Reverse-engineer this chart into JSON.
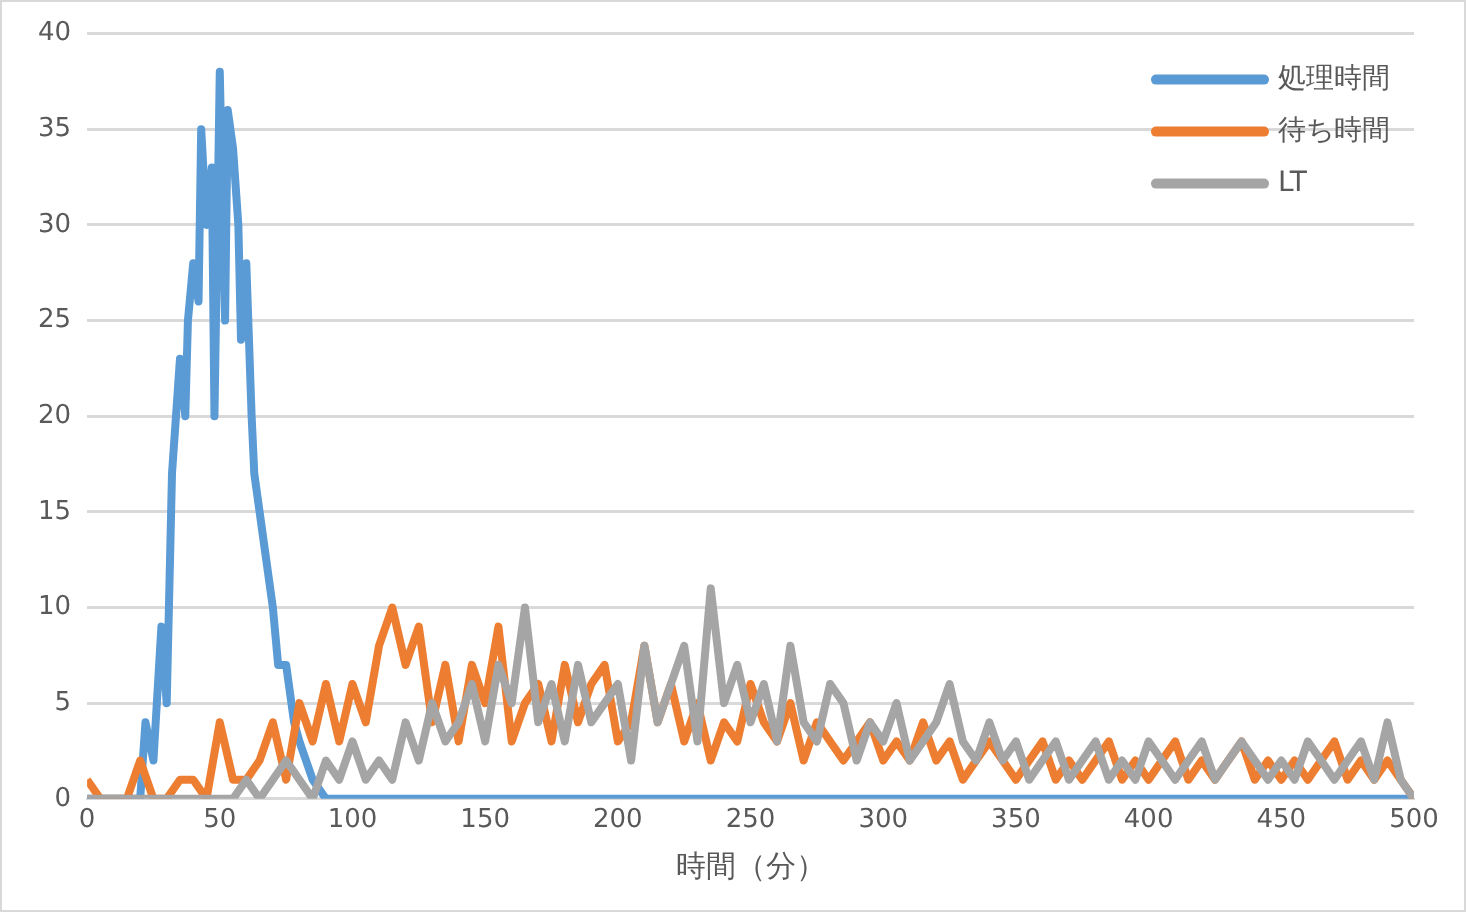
{
  "chart_data": {
    "type": "line",
    "xlabel": "時間（分）",
    "xlim": [
      0,
      500
    ],
    "xticks": [
      0,
      50,
      100,
      150,
      200,
      250,
      300,
      350,
      400,
      450,
      500
    ],
    "ylim": [
      0,
      40
    ],
    "yticks": [
      0,
      5,
      10,
      15,
      20,
      25,
      30,
      35,
      40
    ],
    "grid": "y",
    "legend": "top right",
    "marker": "none",
    "line_style": "solid",
    "series": [
      {
        "name": "処理時間",
        "color": "#5b9bd5",
        "x": [
          0,
          20,
          22,
          25,
          28,
          30,
          32,
          35,
          37,
          38,
          40,
          42,
          43,
          45,
          47,
          48,
          50,
          52,
          53,
          55,
          57,
          58,
          60,
          62,
          63,
          65,
          67,
          70,
          72,
          75,
          78,
          80,
          85,
          90,
          500
        ],
        "values": [
          0,
          0,
          4,
          2,
          9,
          5,
          17,
          23,
          20,
          25,
          28,
          26,
          35,
          30,
          33,
          20,
          38,
          25,
          36,
          34,
          30,
          24,
          28,
          20,
          17,
          15,
          13,
          10,
          7,
          7,
          4,
          3,
          1,
          0,
          0
        ]
      },
      {
        "name": "待ち時間",
        "color": "#ed7d31",
        "x": [
          0,
          5,
          10,
          15,
          20,
          25,
          30,
          35,
          40,
          45,
          50,
          55,
          60,
          65,
          70,
          75,
          80,
          85,
          90,
          95,
          100,
          105,
          110,
          115,
          120,
          125,
          130,
          135,
          140,
          145,
          150,
          155,
          160,
          165,
          170,
          175,
          180,
          185,
          190,
          195,
          200,
          205,
          210,
          215,
          220,
          225,
          230,
          235,
          240,
          245,
          250,
          255,
          260,
          265,
          270,
          275,
          280,
          285,
          290,
          295,
          300,
          305,
          310,
          315,
          320,
          325,
          330,
          335,
          340,
          345,
          350,
          355,
          360,
          365,
          370,
          375,
          380,
          385,
          390,
          395,
          400,
          405,
          410,
          415,
          420,
          425,
          430,
          435,
          440,
          445,
          450,
          455,
          460,
          465,
          470,
          475,
          480,
          485,
          490,
          495,
          500
        ],
        "values": [
          1,
          0,
          0,
          0,
          2,
          0,
          0,
          1,
          1,
          0,
          4,
          1,
          1,
          2,
          4,
          1,
          5,
          3,
          6,
          3,
          6,
          4,
          8,
          10,
          7,
          9,
          4,
          7,
          3,
          7,
          5,
          9,
          3,
          5,
          6,
          3,
          7,
          4,
          6,
          7,
          3,
          4,
          8,
          4,
          6,
          3,
          5,
          2,
          4,
          3,
          6,
          4,
          3,
          5,
          2,
          4,
          3,
          2,
          3,
          4,
          2,
          3,
          2,
          4,
          2,
          3,
          1,
          2,
          3,
          2,
          1,
          2,
          3,
          1,
          2,
          1,
          2,
          3,
          1,
          2,
          1,
          2,
          3,
          1,
          2,
          1,
          2,
          3,
          1,
          2,
          1,
          2,
          1,
          2,
          3,
          1,
          2,
          1,
          2,
          1,
          0
        ]
      },
      {
        "name": "LT",
        "color": "#a5a5a5",
        "x": [
          0,
          5,
          10,
          15,
          20,
          25,
          30,
          35,
          40,
          45,
          50,
          55,
          60,
          65,
          70,
          75,
          80,
          85,
          90,
          95,
          100,
          105,
          110,
          115,
          120,
          125,
          130,
          135,
          140,
          145,
          150,
          155,
          160,
          165,
          170,
          175,
          180,
          185,
          190,
          195,
          200,
          205,
          210,
          215,
          220,
          225,
          230,
          235,
          240,
          245,
          250,
          255,
          260,
          265,
          270,
          275,
          280,
          285,
          290,
          295,
          300,
          305,
          310,
          315,
          320,
          325,
          330,
          335,
          340,
          345,
          350,
          355,
          360,
          365,
          370,
          375,
          380,
          385,
          390,
          395,
          400,
          405,
          410,
          415,
          420,
          425,
          430,
          435,
          440,
          445,
          450,
          455,
          460,
          465,
          470,
          475,
          480,
          485,
          490,
          495,
          500
        ],
        "values": [
          0,
          0,
          0,
          0,
          0,
          0,
          0,
          0,
          0,
          0,
          0,
          0,
          1,
          0,
          1,
          2,
          1,
          0,
          2,
          1,
          3,
          1,
          2,
          1,
          4,
          2,
          5,
          3,
          4,
          6,
          3,
          7,
          5,
          10,
          4,
          6,
          3,
          7,
          4,
          5,
          6,
          2,
          8,
          4,
          6,
          8,
          3,
          11,
          5,
          7,
          4,
          6,
          3,
          8,
          4,
          3,
          6,
          5,
          2,
          4,
          3,
          5,
          2,
          3,
          4,
          6,
          3,
          2,
          4,
          2,
          3,
          1,
          2,
          3,
          1,
          2,
          3,
          1,
          2,
          1,
          3,
          2,
          1,
          2,
          3,
          1,
          2,
          3,
          2,
          1,
          2,
          1,
          3,
          2,
          1,
          2,
          3,
          1,
          4,
          1,
          0
        ]
      }
    ]
  }
}
